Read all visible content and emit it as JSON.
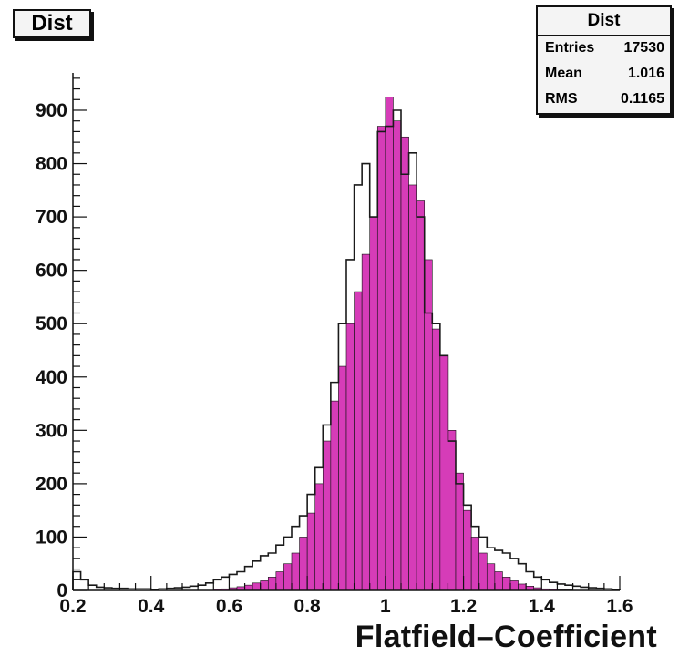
{
  "title": "Dist",
  "stats": {
    "title": "Dist",
    "rows": [
      {
        "label": "Entries",
        "value": "17530"
      },
      {
        "label": "Mean",
        "value": "1.016"
      },
      {
        "label": "RMS",
        "value": "0.1165"
      }
    ]
  },
  "chart_data": {
    "type": "bar",
    "title": "Dist",
    "xlabel": "Flatfield–Coefficient",
    "ylabel": "",
    "xlim": [
      0.2,
      1.6
    ],
    "ylim": [
      0,
      970
    ],
    "bin_width": 0.02,
    "xticks": [
      "0.2",
      "0.4",
      "0.6",
      "0.8",
      "1",
      "1.2",
      "1.4",
      "1.6"
    ],
    "yticks": [
      "0",
      "100",
      "200",
      "300",
      "400",
      "500",
      "600",
      "700",
      "800",
      "900"
    ],
    "fill_color": "#d63cb8",
    "series": [
      {
        "style": "filled",
        "x": [
          0.56,
          0.58,
          0.6,
          0.62,
          0.64,
          0.66,
          0.68,
          0.7,
          0.72,
          0.74,
          0.76,
          0.78,
          0.8,
          0.82,
          0.84,
          0.86,
          0.88,
          0.9,
          0.92,
          0.94,
          0.96,
          0.98,
          1.0,
          1.02,
          1.04,
          1.06,
          1.08,
          1.1,
          1.12,
          1.14,
          1.16,
          1.18,
          1.2,
          1.22,
          1.24,
          1.26,
          1.28,
          1.3,
          1.32,
          1.34,
          1.36,
          1.38,
          1.4,
          1.42,
          1.44,
          1.46,
          1.48,
          1.5
        ],
        "values": [
          2,
          3,
          5,
          7,
          10,
          14,
          18,
          25,
          35,
          50,
          70,
          100,
          145,
          200,
          280,
          355,
          420,
          500,
          560,
          630,
          700,
          870,
          925,
          880,
          850,
          760,
          730,
          620,
          490,
          440,
          300,
          220,
          150,
          100,
          70,
          50,
          35,
          25,
          18,
          12,
          8,
          5,
          3,
          2,
          1,
          1,
          0,
          0
        ]
      },
      {
        "style": "outline",
        "x": [
          0.2,
          0.22,
          0.24,
          0.26,
          0.28,
          0.3,
          0.32,
          0.34,
          0.36,
          0.38,
          0.4,
          0.42,
          0.44,
          0.46,
          0.48,
          0.5,
          0.52,
          0.54,
          0.56,
          0.58,
          0.6,
          0.62,
          0.64,
          0.66,
          0.68,
          0.7,
          0.72,
          0.74,
          0.76,
          0.78,
          0.8,
          0.82,
          0.84,
          0.86,
          0.88,
          0.9,
          0.92,
          0.94,
          0.96,
          0.98,
          1.0,
          1.02,
          1.04,
          1.06,
          1.08,
          1.1,
          1.12,
          1.14,
          1.16,
          1.18,
          1.2,
          1.22,
          1.24,
          1.26,
          1.28,
          1.3,
          1.32,
          1.34,
          1.36,
          1.38,
          1.4,
          1.42,
          1.44,
          1.46,
          1.48,
          1.5,
          1.52,
          1.54,
          1.56,
          1.58
        ],
        "values": [
          35,
          20,
          10,
          6,
          5,
          4,
          4,
          3,
          3,
          3,
          2,
          3,
          4,
          5,
          6,
          8,
          10,
          14,
          20,
          25,
          30,
          35,
          45,
          55,
          65,
          70,
          85,
          100,
          120,
          140,
          180,
          230,
          310,
          390,
          500,
          620,
          760,
          800,
          700,
          860,
          870,
          900,
          780,
          820,
          700,
          520,
          500,
          440,
          280,
          200,
          160,
          120,
          100,
          80,
          75,
          70,
          60,
          50,
          35,
          25,
          20,
          15,
          12,
          10,
          8,
          6,
          5,
          4,
          3,
          2
        ]
      }
    ]
  }
}
